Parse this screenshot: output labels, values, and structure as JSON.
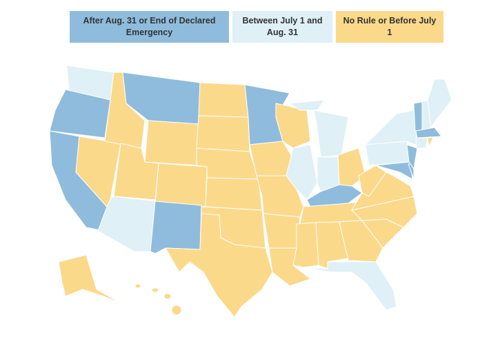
{
  "legend": {
    "items": [
      {
        "label": "After Aug. 31 or End of Declared Emergency",
        "color": "#8fbcdc"
      },
      {
        "label": "Between July 1 and Aug. 31",
        "color": "#dff0f7"
      },
      {
        "label": "No Rule or Before July 1",
        "color": "#fbd98b"
      }
    ]
  }
}
